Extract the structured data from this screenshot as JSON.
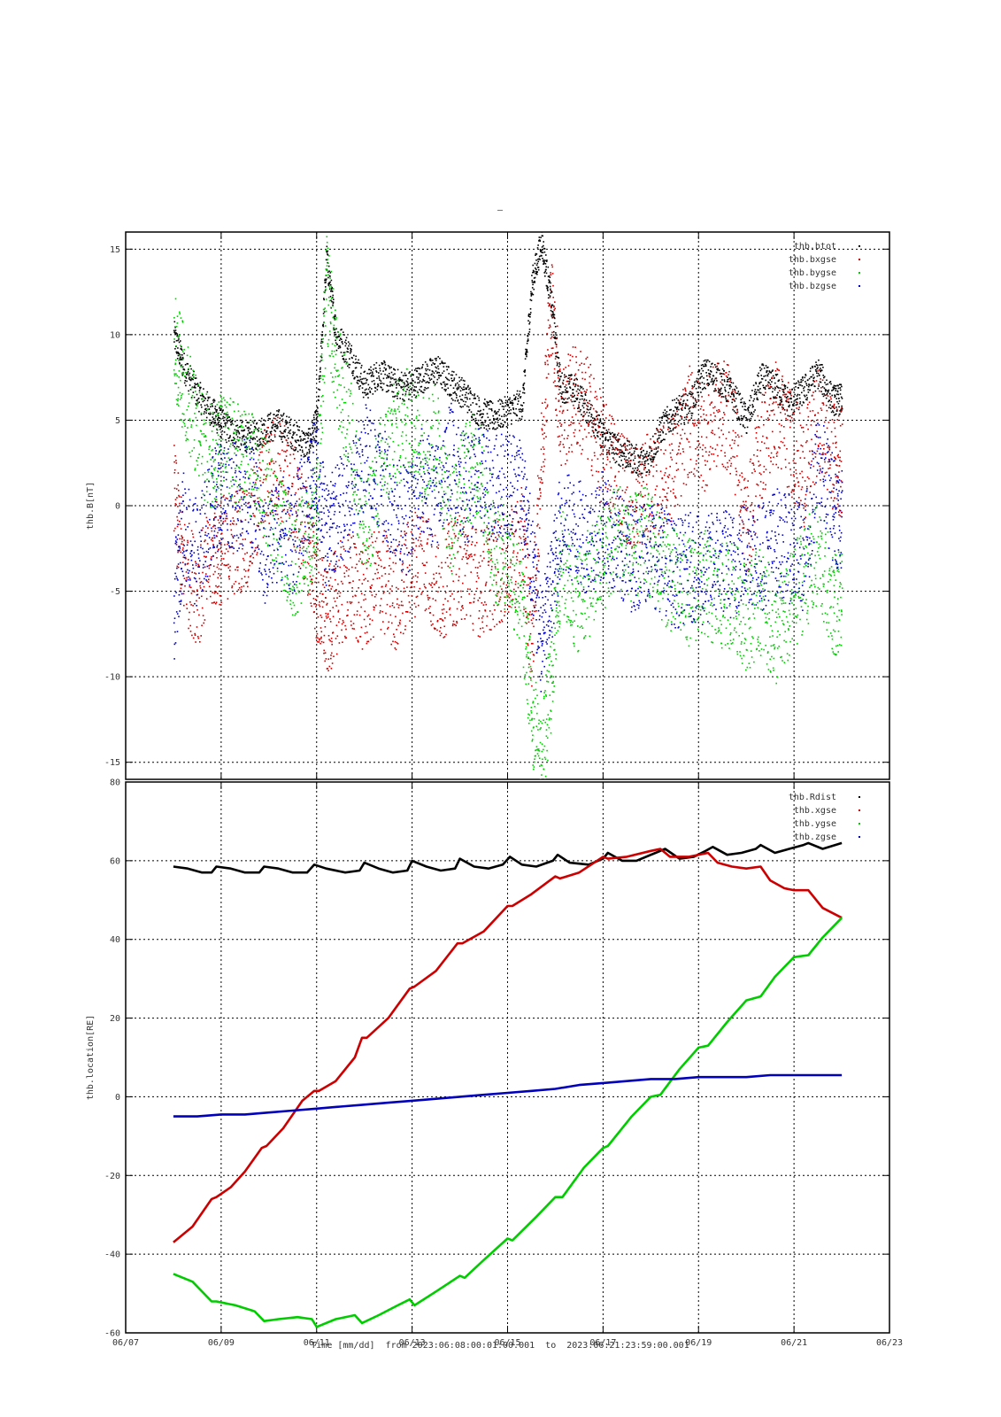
{
  "figure": {
    "top_mark": "–",
    "time_axis_label": "Time [mm/dd]  from 2023:06:08:00:01:00.001  to  2023:06:21:23:59:00.001"
  },
  "chart_data": [
    {
      "type": "scatter",
      "ylabel": "thb.B[nT]",
      "ylim": [
        -16,
        16
      ],
      "yticks": [
        15,
        10,
        5,
        0,
        -5,
        -10,
        -15
      ],
      "xlim_days": [
        7,
        23
      ],
      "xticks": [
        "06/07",
        "06/09",
        "06/11",
        "06/13",
        "06/15",
        "06/17",
        "06/19",
        "06/21",
        "06/23"
      ],
      "xtick_days": [
        7,
        9,
        11,
        13,
        15,
        17,
        19,
        21,
        23
      ],
      "grid": true,
      "legend_position": "top-right",
      "series": [
        {
          "name": "thb.btot",
          "color": "#000000",
          "x": [
            8.0,
            8.2,
            8.5,
            8.8,
            9.0,
            9.3,
            9.6,
            9.9,
            10.2,
            10.5,
            10.8,
            11.0,
            11.2,
            11.4,
            11.7,
            12.0,
            12.3,
            12.6,
            12.9,
            13.2,
            13.5,
            13.8,
            14.1,
            14.4,
            14.7,
            15.0,
            15.3,
            15.5,
            15.7,
            15.9,
            16.1,
            16.4,
            16.7,
            17.0,
            17.3,
            17.6,
            17.9,
            18.2,
            18.5,
            18.8,
            19.1,
            19.4,
            19.7,
            20.0,
            20.3,
            20.6,
            20.9,
            21.2,
            21.5,
            21.8,
            22.0
          ],
          "y": [
            10.0,
            8.2,
            6.5,
            5.5,
            4.8,
            4.2,
            4.0,
            4.5,
            4.8,
            4.2,
            3.5,
            5.0,
            14.5,
            10.0,
            8.8,
            7.0,
            7.8,
            7.2,
            7.0,
            7.5,
            8.0,
            7.2,
            6.5,
            5.5,
            5.2,
            5.6,
            6.0,
            13.0,
            15.5,
            12.0,
            7.0,
            6.8,
            5.5,
            4.0,
            3.3,
            2.8,
            2.5,
            4.5,
            5.5,
            5.8,
            7.8,
            7.5,
            6.5,
            5.0,
            7.5,
            7.0,
            6.0,
            6.8,
            7.8,
            6.2,
            6.3
          ]
        },
        {
          "name": "thb.bxgse",
          "color": "#cc0000",
          "x": [
            8.0,
            8.2,
            8.5,
            8.8,
            9.0,
            9.3,
            9.6,
            9.9,
            10.2,
            10.5,
            10.8,
            11.0,
            11.2,
            11.4,
            11.7,
            12.0,
            12.3,
            12.6,
            12.9,
            13.2,
            13.5,
            13.8,
            14.1,
            14.4,
            14.7,
            15.0,
            15.3,
            15.5,
            15.7,
            15.9,
            16.1,
            16.4,
            16.7,
            17.0,
            17.3,
            17.6,
            17.9,
            18.2,
            18.5,
            18.8,
            19.1,
            19.4,
            19.7,
            20.0,
            20.3,
            20.6,
            20.9,
            21.2,
            21.5,
            21.8,
            22.0
          ],
          "y": [
            0.5,
            -3.5,
            -5.0,
            -3.0,
            -2.5,
            -2.0,
            -1.5,
            1.5,
            2.5,
            0.5,
            -2.0,
            -5.0,
            -7.0,
            -5.5,
            -4.5,
            -5.5,
            -4.0,
            -5.5,
            -4.0,
            -2.5,
            -5.0,
            -4.0,
            -3.5,
            -4.5,
            -4.0,
            -3.5,
            -2.0,
            -8.0,
            3.0,
            12.0,
            5.0,
            6.5,
            5.5,
            3.0,
            2.0,
            0.5,
            1.0,
            1.5,
            2.5,
            5.0,
            4.0,
            5.5,
            5.0,
            -1.5,
            3.5,
            5.5,
            4.0,
            2.0,
            5.0,
            3.0,
            2.5
          ]
        },
        {
          "name": "thb.bygse",
          "color": "#00cc00",
          "x": [
            8.0,
            8.2,
            8.5,
            8.8,
            9.0,
            9.3,
            9.6,
            9.9,
            10.2,
            10.5,
            10.8,
            11.0,
            11.2,
            11.4,
            11.7,
            12.0,
            12.3,
            12.6,
            12.9,
            13.2,
            13.5,
            13.8,
            14.1,
            14.4,
            14.7,
            15.0,
            15.3,
            15.5,
            15.7,
            15.9,
            16.1,
            16.4,
            16.7,
            17.0,
            17.3,
            17.6,
            17.9,
            18.2,
            18.5,
            18.8,
            19.1,
            19.4,
            19.7,
            20.0,
            20.3,
            20.6,
            20.9,
            21.2,
            21.5,
            21.8,
            22.0
          ],
          "y": [
            9.5,
            7.5,
            4.0,
            3.0,
            3.5,
            3.0,
            2.5,
            1.0,
            -1.0,
            -3.5,
            -2.0,
            0.0,
            13.0,
            8.0,
            4.5,
            -2.0,
            2.0,
            4.0,
            5.0,
            3.5,
            4.0,
            -1.0,
            2.0,
            2.5,
            -2.5,
            -3.0,
            -6.0,
            -12.0,
            -15.5,
            -10.0,
            -3.0,
            -5.5,
            -4.5,
            -3.0,
            -1.5,
            -2.5,
            -2.0,
            -3.5,
            -4.5,
            -5.0,
            -4.5,
            -5.5,
            -5.0,
            -6.5,
            -5.5,
            -7.5,
            -6.0,
            -4.0,
            -3.0,
            -5.5,
            -6.0
          ]
        },
        {
          "name": "thb.bzgse",
          "color": "#0000cc",
          "x": [
            8.0,
            8.2,
            8.5,
            8.8,
            9.0,
            9.3,
            9.6,
            9.9,
            10.2,
            10.5,
            10.8,
            11.0,
            11.2,
            11.4,
            11.7,
            12.0,
            12.3,
            12.6,
            12.9,
            13.2,
            13.5,
            13.8,
            14.1,
            14.4,
            14.7,
            15.0,
            15.3,
            15.5,
            15.7,
            15.9,
            16.1,
            16.4,
            16.7,
            17.0,
            17.3,
            17.6,
            17.9,
            18.2,
            18.5,
            18.8,
            19.1,
            19.4,
            19.7,
            20.0,
            20.3,
            20.6,
            20.9,
            21.2,
            21.5,
            21.8,
            22.0
          ],
          "y": [
            -6.0,
            -1.0,
            -3.0,
            0.0,
            1.0,
            0.5,
            1.0,
            -3.0,
            -1.0,
            -2.0,
            1.0,
            2.0,
            -2.0,
            -0.5,
            0.5,
            3.0,
            2.0,
            0.0,
            -1.0,
            1.5,
            0.5,
            3.0,
            1.0,
            1.5,
            1.0,
            1.5,
            1.0,
            -3.5,
            -8.0,
            -5.0,
            -1.0,
            -1.5,
            -2.0,
            -1.0,
            -2.5,
            -3.0,
            -2.5,
            -3.0,
            -4.0,
            -3.5,
            -4.0,
            -3.0,
            -3.5,
            -2.5,
            -3.0,
            -2.0,
            -2.5,
            -3.0,
            2.5,
            0.0,
            -1.0
          ]
        }
      ]
    },
    {
      "type": "line",
      "ylabel": "thb.location[RE]",
      "ylim": [
        -60,
        80
      ],
      "yticks": [
        80,
        60,
        40,
        20,
        0,
        -20,
        -40,
        -60
      ],
      "xlim_days": [
        7,
        23
      ],
      "xticks": [
        "06/07",
        "06/09",
        "06/11",
        "06/13",
        "06/15",
        "06/17",
        "06/19",
        "06/21",
        "06/23"
      ],
      "xtick_days": [
        7,
        9,
        11,
        13,
        15,
        17,
        19,
        21,
        23
      ],
      "grid": true,
      "legend_position": "top-right",
      "series": [
        {
          "name": "thb.Rdist",
          "color": "#000000",
          "x": [
            8.0,
            8.3,
            8.6,
            8.8,
            8.9,
            9.2,
            9.5,
            9.8,
            9.9,
            10.2,
            10.5,
            10.8,
            10.95,
            11.2,
            11.6,
            11.9,
            12.0,
            12.3,
            12.6,
            12.9,
            13.0,
            13.3,
            13.6,
            13.9,
            14.0,
            14.3,
            14.6,
            14.9,
            15.05,
            15.3,
            15.6,
            15.95,
            16.05,
            16.3,
            16.7,
            17.0,
            17.1,
            17.4,
            17.7,
            18.1,
            18.3,
            18.6,
            18.9,
            19.15,
            19.3,
            19.6,
            19.9,
            20.2,
            20.3,
            20.6,
            20.9,
            21.2,
            21.3,
            21.6,
            22.0
          ],
          "y": [
            58.5,
            58.0,
            57.0,
            57.0,
            58.5,
            58.0,
            57.0,
            57.0,
            58.5,
            58.0,
            57.0,
            57.0,
            59.0,
            58.0,
            57.0,
            57.5,
            59.5,
            58.0,
            57.0,
            57.5,
            60.0,
            58.5,
            57.5,
            58.0,
            60.5,
            58.5,
            58.0,
            59.0,
            61.0,
            59.0,
            58.5,
            60.0,
            61.5,
            59.5,
            59.0,
            60.5,
            62.0,
            60.0,
            60.0,
            62.0,
            63.0,
            60.5,
            61.0,
            62.5,
            63.5,
            61.5,
            62.0,
            63.0,
            64.0,
            62.0,
            63.0,
            64.0,
            64.5,
            63.0,
            64.5
          ]
        },
        {
          "name": "thb.xgse",
          "color": "#cc0000",
          "x": [
            8.0,
            8.4,
            8.8,
            8.9,
            9.2,
            9.5,
            9.85,
            9.95,
            10.3,
            10.7,
            10.95,
            11.05,
            11.4,
            11.8,
            11.95,
            12.05,
            12.5,
            12.95,
            13.05,
            13.5,
            13.95,
            14.05,
            14.5,
            15.0,
            15.1,
            15.5,
            16.0,
            16.1,
            16.5,
            17.0,
            17.1,
            17.5,
            18.0,
            18.2,
            18.4,
            18.8,
            19.2,
            19.4,
            19.7,
            20.0,
            20.3,
            20.5,
            20.8,
            21.0,
            21.3,
            21.6,
            22.0
          ],
          "y": [
            -37.0,
            -33.0,
            -26.0,
            -25.5,
            -23.0,
            -19.0,
            -13.0,
            -12.5,
            -8.0,
            -1.0,
            1.5,
            1.5,
            4.0,
            10.0,
            15.0,
            15.0,
            20.0,
            27.5,
            28.0,
            32.0,
            39.0,
            39.0,
            42.0,
            48.5,
            48.5,
            51.5,
            56.0,
            55.5,
            57.0,
            61.0,
            60.5,
            61.0,
            62.5,
            63.0,
            61.0,
            61.0,
            62.0,
            59.5,
            58.5,
            58.0,
            58.5,
            55.0,
            53.0,
            52.5,
            52.5,
            48.0,
            45.5
          ]
        },
        {
          "name": "thb.ygse",
          "color": "#00cc00",
          "x": [
            8.0,
            8.4,
            8.8,
            8.9,
            9.3,
            9.7,
            9.9,
            10.2,
            10.6,
            10.9,
            11.0,
            11.4,
            11.8,
            11.95,
            12.3,
            12.7,
            12.95,
            13.05,
            13.5,
            14.0,
            14.1,
            14.5,
            15.0,
            15.1,
            15.6,
            16.0,
            16.15,
            16.6,
            17.0,
            17.1,
            17.6,
            18.0,
            18.2,
            18.6,
            19.0,
            19.2,
            19.6,
            20.0,
            20.3,
            20.6,
            21.0,
            21.3,
            21.6,
            22.0
          ],
          "y": [
            -45.0,
            -47.0,
            -52.0,
            -52.0,
            -53.0,
            -54.5,
            -57.0,
            -56.5,
            -56.0,
            -56.5,
            -58.5,
            -56.5,
            -55.5,
            -57.5,
            -55.5,
            -53.0,
            -51.5,
            -53.0,
            -49.5,
            -45.5,
            -46.0,
            -41.5,
            -36.0,
            -36.5,
            -30.5,
            -25.5,
            -25.5,
            -18.0,
            -13.0,
            -12.5,
            -5.0,
            0.0,
            0.5,
            7.0,
            12.5,
            13.0,
            19.0,
            24.5,
            25.5,
            30.5,
            35.5,
            36.0,
            40.5,
            45.5
          ]
        },
        {
          "name": "thb.zgse",
          "color": "#0000bb",
          "x": [
            8.0,
            8.5,
            9.0,
            9.5,
            10.0,
            10.5,
            11.0,
            11.5,
            12.0,
            12.5,
            13.0,
            13.5,
            14.0,
            14.5,
            15.0,
            15.5,
            16.0,
            16.5,
            17.0,
            17.5,
            18.0,
            18.5,
            19.0,
            19.5,
            20.0,
            20.5,
            21.0,
            21.5,
            22.0
          ],
          "y": [
            -5.0,
            -5.0,
            -4.5,
            -4.5,
            -4.0,
            -3.5,
            -3.0,
            -2.5,
            -2.0,
            -1.5,
            -1.0,
            -0.5,
            0.0,
            0.5,
            1.0,
            1.5,
            2.0,
            3.0,
            3.5,
            4.0,
            4.5,
            4.5,
            5.0,
            5.0,
            5.0,
            5.5,
            5.5,
            5.5,
            5.5
          ]
        }
      ]
    }
  ]
}
